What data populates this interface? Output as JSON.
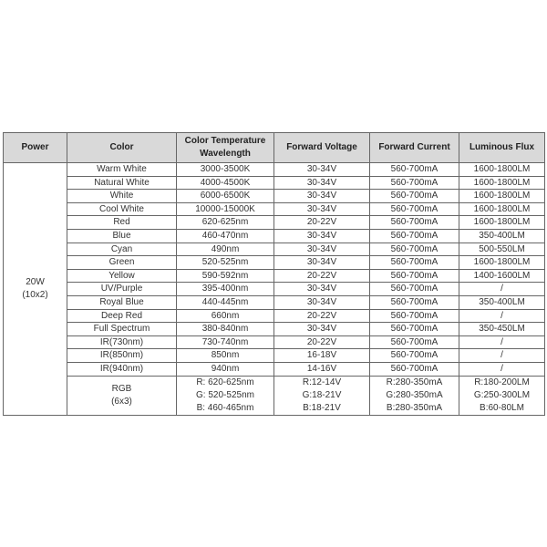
{
  "headers": [
    "Power",
    "Color",
    "Color Temperature Wavelength",
    "Forward Voltage",
    "Forward Current",
    "Luminous Flux"
  ],
  "power": {
    "line1": "20W",
    "line2": "(10x2)"
  },
  "rows": [
    [
      "Warm White",
      "3000-3500K",
      "30-34V",
      "560-700mA",
      "1600-1800LM"
    ],
    [
      "Natural White",
      "4000-4500K",
      "30-34V",
      "560-700mA",
      "1600-1800LM"
    ],
    [
      "White",
      "6000-6500K",
      "30-34V",
      "560-700mA",
      "1600-1800LM"
    ],
    [
      "Cool White",
      "10000-15000K",
      "30-34V",
      "560-700mA",
      "1600-1800LM"
    ],
    [
      "Red",
      "620-625nm",
      "20-22V",
      "560-700mA",
      "1600-1800LM"
    ],
    [
      "Blue",
      "460-470nm",
      "30-34V",
      "560-700mA",
      "350-400LM"
    ],
    [
      "Cyan",
      "490nm",
      "30-34V",
      "560-700mA",
      "500-550LM"
    ],
    [
      "Green",
      "520-525nm",
      "30-34V",
      "560-700mA",
      "1600-1800LM"
    ],
    [
      "Yellow",
      "590-592nm",
      "20-22V",
      "560-700mA",
      "1400-1600LM"
    ],
    [
      "UV/Purple",
      "395-400nm",
      "30-34V",
      "560-700mA",
      "/"
    ],
    [
      "Royal Blue",
      "440-445nm",
      "30-34V",
      "560-700mA",
      "350-400LM"
    ],
    [
      "Deep Red",
      "660nm",
      "20-22V",
      "560-700mA",
      "/"
    ],
    [
      "Full Spectrum",
      "380-840nm",
      "30-34V",
      "560-700mA",
      "350-450LM"
    ],
    [
      "IR(730nm)",
      "730-740nm",
      "20-22V",
      "560-700mA",
      "/"
    ],
    [
      "IR(850nm)",
      "850nm",
      "16-18V",
      "560-700mA",
      "/"
    ],
    [
      "IR(940nm)",
      "940nm",
      "14-16V",
      "560-700mA",
      "/"
    ]
  ],
  "rgb": {
    "color": [
      "RGB",
      "(6x3)"
    ],
    "wavelength": [
      "R: 620-625nm",
      "G: 520-525nm",
      "B: 460-465nm"
    ],
    "voltage": [
      "R:12-14V",
      "G:18-21V",
      "B:18-21V"
    ],
    "current": [
      "R:280-350mA",
      "G:280-350mA",
      "B:280-350mA"
    ],
    "flux": [
      "R:180-200LM",
      "G:250-300LM",
      "B:60-80LM"
    ]
  }
}
